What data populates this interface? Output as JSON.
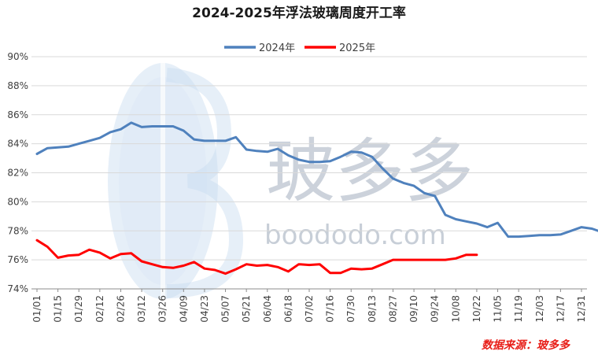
{
  "chart_data": {
    "type": "line",
    "title": "2024-2025年浮法玻璃周度开工率",
    "xlabel": "",
    "ylabel": "",
    "ylim": [
      74,
      90
    ],
    "yticks": [
      "74%",
      "76%",
      "78%",
      "80%",
      "82%",
      "84%",
      "86%",
      "88%",
      "90%"
    ],
    "ytick_values": [
      74,
      76,
      78,
      80,
      82,
      84,
      86,
      88,
      90
    ],
    "xticks": [
      "01/01",
      "01/15",
      "01/29",
      "02/12",
      "02/26",
      "03/12",
      "03/26",
      "04/09",
      "04/23",
      "05/07",
      "05/21",
      "06/04",
      "06/18",
      "07/02",
      "07/16",
      "07/30",
      "08/13",
      "08/27",
      "09/10",
      "09/24",
      "10/08",
      "10/22",
      "11/05",
      "11/19",
      "12/03",
      "12/17",
      "12/31"
    ],
    "grid": true,
    "legend_position": "top-center",
    "series": [
      {
        "name": "2024年",
        "color": "#4f81bd",
        "values": [
          83.3,
          83.7,
          83.75,
          83.8,
          84.0,
          84.2,
          84.4,
          84.8,
          85.0,
          85.45,
          85.15,
          85.2,
          85.2,
          85.2,
          84.9,
          84.3,
          84.2,
          84.2,
          84.2,
          84.45,
          83.6,
          83.5,
          83.45,
          83.65,
          83.2,
          82.9,
          82.75,
          82.75,
          82.8,
          83.1,
          83.45,
          83.4,
          83.1,
          82.3,
          81.6,
          81.3,
          81.1,
          80.6,
          80.4,
          79.1,
          78.8,
          78.65,
          78.5,
          78.25,
          78.55,
          77.6,
          77.6,
          77.65,
          77.7,
          77.7,
          77.75,
          78.0,
          78.25,
          78.15,
          77.9
        ]
      },
      {
        "name": "2025年",
        "color": "#ff0000",
        "values": [
          77.35,
          76.9,
          76.15,
          76.3,
          76.35,
          76.7,
          76.5,
          76.1,
          76.4,
          76.45,
          75.9,
          75.7,
          75.5,
          75.45,
          75.6,
          75.85,
          75.4,
          75.3,
          75.05,
          75.35,
          75.7,
          75.6,
          75.65,
          75.5,
          75.2,
          75.7,
          75.65,
          75.7,
          75.1,
          75.1,
          75.4,
          75.35,
          75.4,
          75.7,
          76.0,
          76.0,
          76.0,
          76.0,
          76.0,
          76.0,
          76.1,
          76.35,
          76.35
        ]
      }
    ]
  },
  "watermark": {
    "brand_cjk": "玻多多",
    "domain": "boododo.com",
    "color": "#9aa7b8"
  },
  "source_note": "数据来源：玻多多"
}
